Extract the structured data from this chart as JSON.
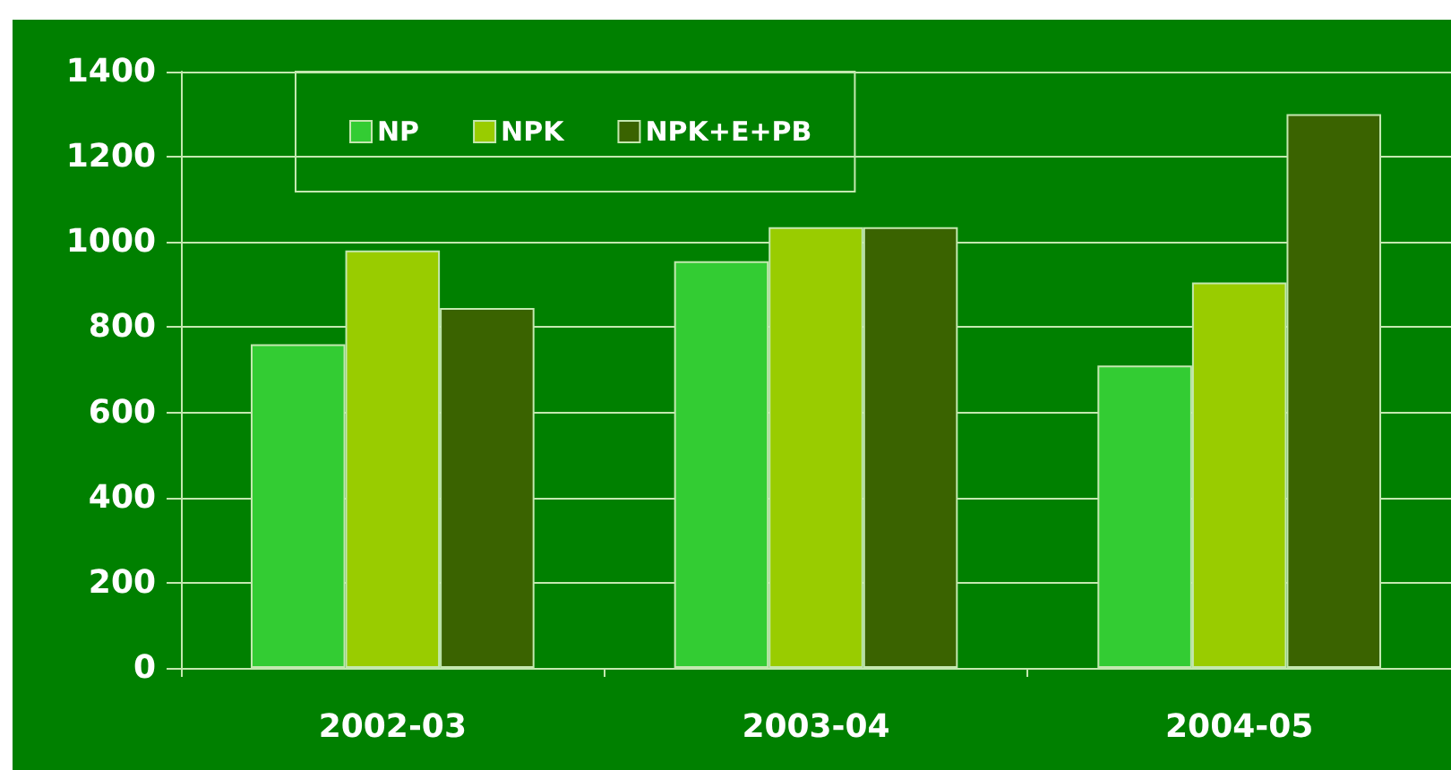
{
  "chart_data": {
    "type": "bar",
    "categories": [
      "2002-03",
      "2003-04",
      "2004-05"
    ],
    "series": [
      {
        "name": "NP",
        "color": "#33cc33",
        "values": [
          760,
          955,
          710
        ]
      },
      {
        "name": "NPK",
        "color": "#99cc00",
        "values": [
          980,
          1035,
          905
        ]
      },
      {
        "name": "NPK+E+PB",
        "color": "#3a6300",
        "values": [
          845,
          1035,
          1300
        ]
      }
    ],
    "ylim": [
      0,
      1400
    ],
    "yticks": [
      0,
      200,
      400,
      600,
      800,
      1000,
      1200,
      1400
    ],
    "grid": "y",
    "legend": "top left"
  }
}
